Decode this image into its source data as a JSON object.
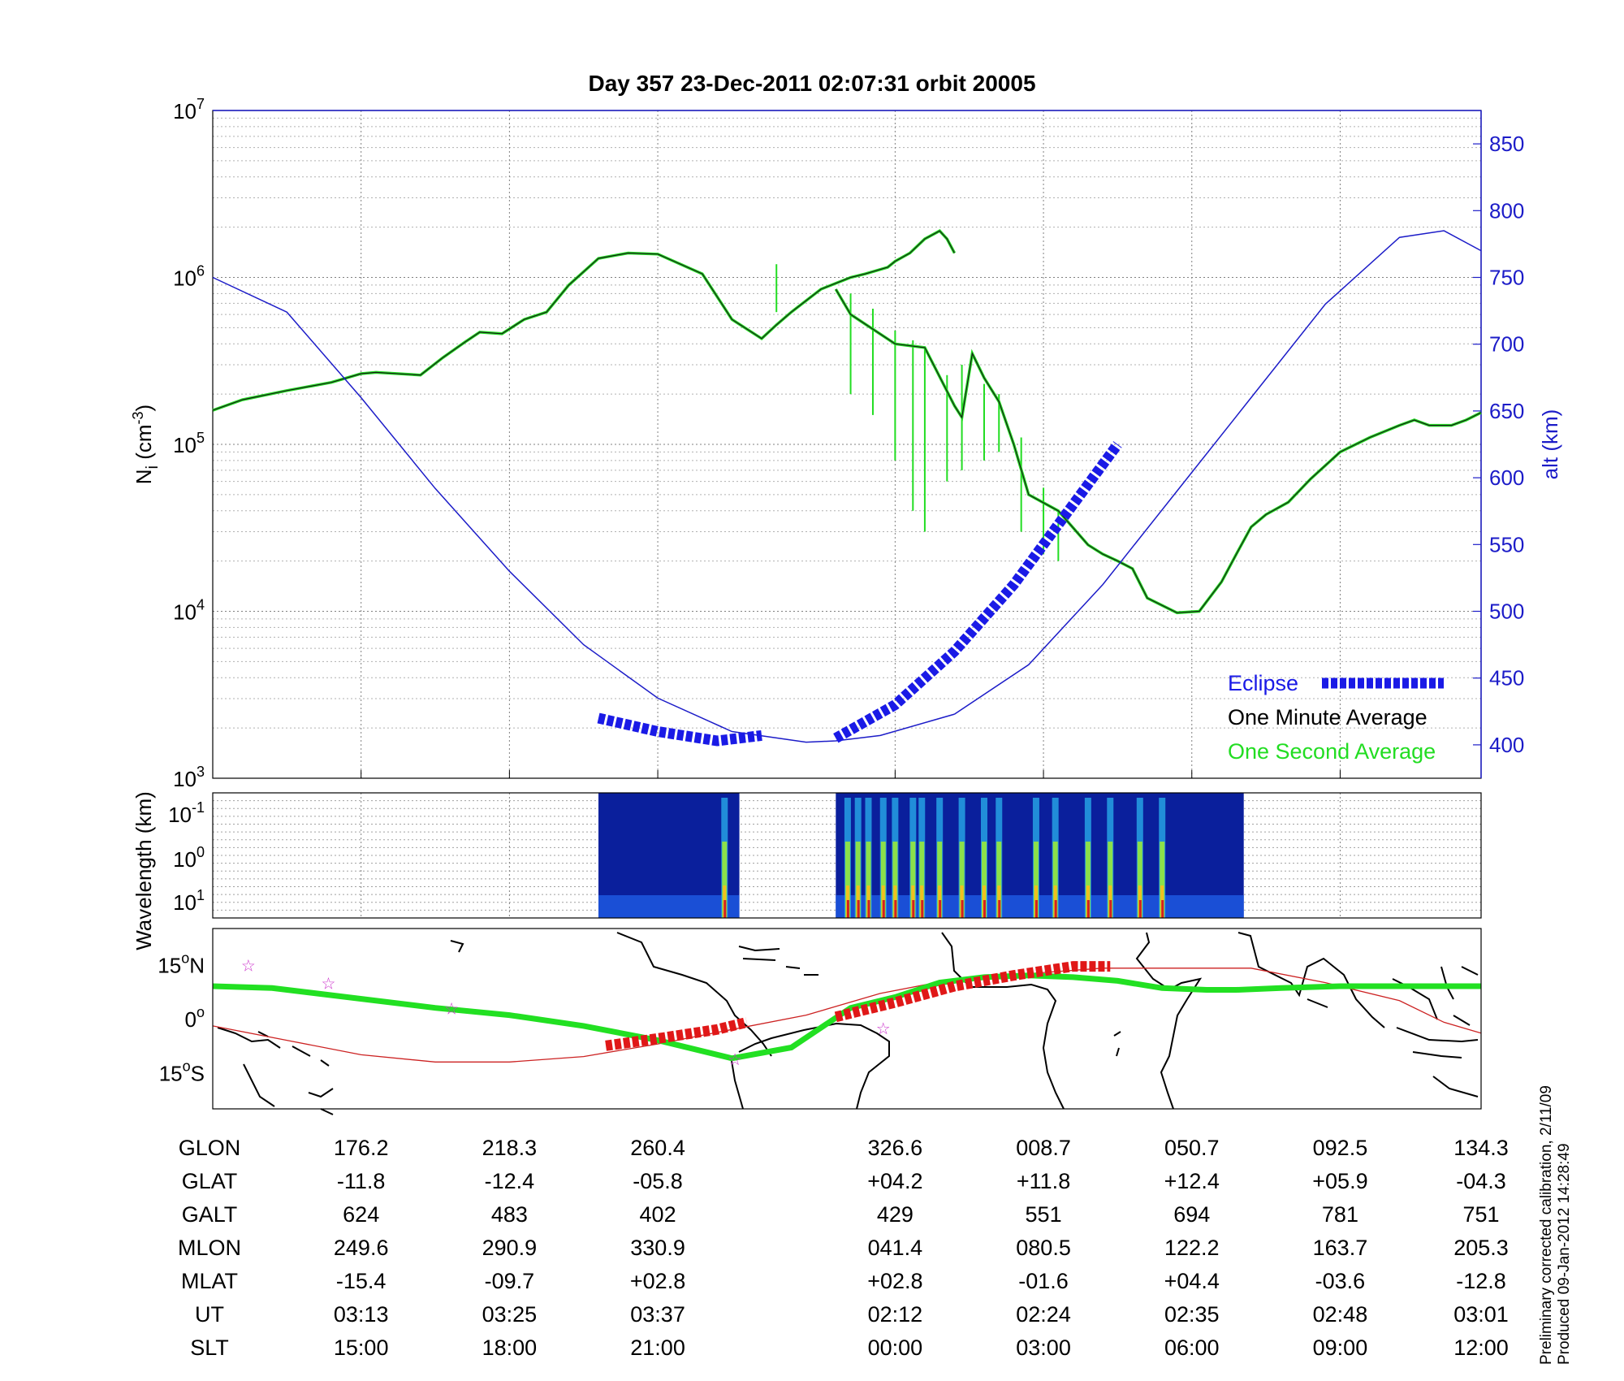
{
  "title": "Day 357  23-Dec-2011 02:07:31   orbit 20005",
  "colors": {
    "density_line": "#1a1a1a",
    "second_line": "#22dd22",
    "altitude_line": "#1c1cc8",
    "eclipse": "#1a1ae6",
    "track": "#22e022",
    "track_eclipse": "#e01818",
    "magnetic_equator": "#cc2222",
    "star": "#cc33cc"
  },
  "chart_data": [
    {
      "type": "line",
      "panel": "ion-density",
      "ylabel": "N_i (cm^-3)",
      "ylabel_main": "N",
      "ylabel_sub": "i",
      "ylabel_unit_open": " (cm",
      "ylabel_unit_exp": "-3",
      "ylabel_unit_close": ")",
      "yscale": "log",
      "ylim": [
        1000,
        10000000
      ],
      "yticks": [
        {
          "base": "10",
          "exp": "3",
          "value": 1000
        },
        {
          "base": "10",
          "exp": "4",
          "value": 10000
        },
        {
          "base": "10",
          "exp": "5",
          "value": 100000
        },
        {
          "base": "10",
          "exp": "6",
          "value": 1000000
        },
        {
          "base": "10",
          "exp": "7",
          "value": 10000000
        }
      ],
      "y2label": "alt (km)",
      "y2lim": [
        375,
        875
      ],
      "y2ticks": [
        "400",
        "450",
        "500",
        "550",
        "600",
        "650",
        "700",
        "750",
        "800",
        "850"
      ],
      "xlim": [
        0,
        8.55
      ],
      "grid": true,
      "legend_position": "bottom-right",
      "legend": [
        {
          "label": "Eclipse",
          "key": "eclipse"
        },
        {
          "label": "One Minute Average",
          "key": "minute"
        },
        {
          "label": "One Second Average",
          "key": "second"
        }
      ],
      "series": [
        {
          "name": "One Minute Average",
          "segments": [
            {
              "x": [
                0.0,
                0.2,
                0.5,
                0.8,
                1.0,
                1.1,
                1.4,
                1.55,
                1.7,
                1.8,
                1.95,
                2.1,
                2.25,
                2.4,
                2.6,
                2.8,
                3.0,
                3.3,
                3.5,
                3.7,
                3.8,
                3.9,
                4.1,
                4.3,
                4.4,
                4.55,
                4.6,
                4.7,
                4.8,
                4.9,
                4.95,
                5.0
              ],
              "y": [
                160000,
                185000,
                210000,
                235000,
                265000,
                270000,
                260000,
                330000,
                410000,
                470000,
                460000,
                560000,
                620000,
                900000,
                1300000,
                1400000,
                1380000,
                1050000,
                560000,
                430000,
                520000,
                620000,
                850000,
                1000000,
                1050000,
                1150000,
                1250000,
                1400000,
                1700000,
                1900000,
                1700000,
                1400000
              ]
            },
            {
              "x": [
                4.2,
                4.3,
                4.6,
                4.8,
                5.0,
                5.05,
                5.12,
                5.2,
                5.3,
                5.4,
                5.5,
                5.7,
                5.9,
                6.0,
                6.1,
                6.2,
                6.3,
                6.5,
                6.65,
                6.8,
                6.9,
                7.0,
                7.1,
                7.25,
                7.4,
                7.6,
                7.8,
                8.0,
                8.1,
                8.2,
                8.35,
                8.45,
                8.55
              ],
              "y": [
                850000,
                600000,
                400000,
                380000,
                170000,
                145000,
                350000,
                250000,
                180000,
                100000,
                50000,
                40000,
                25000,
                22000,
                20000,
                18000,
                12000,
                9800,
                10000,
                15000,
                22000,
                32000,
                38000,
                45000,
                62000,
                90000,
                110000,
                130000,
                140000,
                130000,
                130000,
                140000,
                155000
              ]
            }
          ]
        },
        {
          "name": "One Second Average",
          "spikes": [
            {
              "x": 3.8,
              "y": 1200000,
              "y_low": 620000
            },
            {
              "x": 4.3,
              "y": 800000,
              "y_low": 200000
            },
            {
              "x": 4.45,
              "y": 650000,
              "y_low": 150000
            },
            {
              "x": 4.6,
              "y": 480000,
              "y_low": 80000
            },
            {
              "x": 4.72,
              "y": 420000,
              "y_low": 40000
            },
            {
              "x": 4.8,
              "y": 380000,
              "y_low": 30000
            },
            {
              "x": 4.95,
              "y": 260000,
              "y_low": 60000
            },
            {
              "x": 5.05,
              "y": 300000,
              "y_low": 70000
            },
            {
              "x": 5.2,
              "y": 230000,
              "y_low": 80000
            },
            {
              "x": 5.3,
              "y": 200000,
              "y_low": 90000
            },
            {
              "x": 5.45,
              "y": 110000,
              "y_low": 30000
            },
            {
              "x": 5.6,
              "y": 55000,
              "y_low": 22000
            },
            {
              "x": 5.7,
              "y": 40000,
              "y_low": 20000
            }
          ]
        },
        {
          "name": "alt (km)",
          "axis": "right",
          "segments": [
            {
              "x": [
                0.0,
                0.5,
                1.0,
                1.5,
                2.0,
                2.5,
                3.0,
                3.5,
                4.0,
                4.2,
                4.5,
                5.0
              ],
              "y": [
                750,
                724,
                660,
                592,
                530,
                475,
                435,
                410,
                402,
                403,
                407,
                423
              ]
            },
            {
              "x": [
                5.0,
                5.5,
                6.0,
                6.5,
                7.0,
                7.5,
                8.0,
                8.3,
                8.55
              ],
              "y": [
                423,
                460,
                520,
                590,
                660,
                730,
                780,
                785,
                770
              ]
            }
          ]
        },
        {
          "name": "Eclipse",
          "axis": "right",
          "segments": [
            {
              "x": [
                2.6,
                3.0,
                3.4,
                3.7
              ],
              "y": [
                420,
                410,
                403,
                407
              ]
            },
            {
              "x": [
                4.2,
                4.6,
                5.0,
                5.4,
                5.8,
                6.1
              ],
              "y": [
                405,
                430,
                470,
                520,
                580,
                625
              ]
            }
          ]
        }
      ]
    },
    {
      "type": "heatmap",
      "panel": "wavelength-spectrogram",
      "ylabel": "Wavelength (km)",
      "yticks": [
        {
          "base": "10",
          "exp": "-1"
        },
        {
          "base": "10",
          "exp": "0"
        },
        {
          "base": "10",
          "exp": "1"
        }
      ],
      "data_intervals": [
        [
          2.6,
          3.55
        ],
        [
          4.2,
          6.95
        ]
      ],
      "intense_x": [
        3.45,
        4.28,
        4.35,
        4.42,
        4.52,
        4.6,
        4.72,
        4.78,
        4.9,
        5.05,
        5.2,
        5.3,
        5.55,
        5.68,
        5.9,
        6.05,
        6.25,
        6.4
      ]
    },
    {
      "type": "scatter",
      "panel": "ground-track-map",
      "ylabel_ticks": [
        {
          "value": "15",
          "suffix": "N",
          "lat": 15
        },
        {
          "value": "0",
          "suffix": "",
          "lat": 0
        },
        {
          "value": "15",
          "suffix": "S",
          "lat": -15
        }
      ],
      "ylim": [
        -25,
        25
      ],
      "ground_track": {
        "x": [
          0.0,
          0.4,
          0.8,
          1.5,
          2.0,
          2.5,
          3.0,
          3.5,
          3.9,
          4.3,
          4.6,
          4.9,
          5.2,
          5.5,
          5.8,
          6.1,
          6.4,
          6.7,
          6.9,
          7.2,
          7.6,
          8.0,
          8.55
        ],
        "lat": [
          9,
          8.5,
          6.5,
          3,
          1,
          -2,
          -6,
          -11,
          -8,
          3,
          6,
          10,
          11.5,
          12,
          11.5,
          10.5,
          8.5,
          8,
          8,
          8.5,
          9,
          9,
          9
        ]
      },
      "eclipse_track": {
        "segments": [
          {
            "x": [
              2.65,
              3.0,
              3.4,
              3.6
            ],
            "lat": [
              -7.5,
              -5.5,
              -3,
              -1
            ]
          },
          {
            "x": [
              4.2,
              4.6,
              5.0,
              5.4,
              5.8,
              6.05
            ],
            "lat": [
              0.5,
              4.5,
              9,
              12,
              14.5,
              14.5
            ]
          }
        ]
      },
      "magnetic_equator": {
        "x": [
          0.0,
          0.5,
          1.0,
          1.5,
          2.0,
          2.5,
          3.0,
          3.5,
          4.0,
          4.5,
          5.0,
          6.0,
          7.0,
          7.5,
          8.0,
          8.3,
          8.55
        ],
        "lat": [
          -2,
          -6,
          -10,
          -12,
          -12,
          -10.5,
          -7,
          -3,
          1,
          7,
          11,
          14,
          14,
          10,
          5,
          -1,
          -4
        ]
      },
      "stars": [
        {
          "x": 0.24,
          "lat": 15
        },
        {
          "x": 0.78,
          "lat": 10
        },
        {
          "x": 1.61,
          "lat": 3
        },
        {
          "x": 4.52,
          "lat": -2.5
        },
        {
          "x": 3.52,
          "lat": -11
        }
      ]
    }
  ],
  "table": {
    "columns_x": [
      1.0,
      2.0,
      3.0,
      4.6,
      5.6,
      6.6,
      7.6,
      8.55
    ],
    "rows": [
      {
        "label": "GLON",
        "values": [
          "176.2",
          "218.3",
          "260.4",
          "326.6",
          "008.7",
          "050.7",
          "092.5",
          "134.3"
        ]
      },
      {
        "label": "GLAT",
        "values": [
          "-11.8",
          "-12.4",
          "-05.8",
          "+04.2",
          "+11.8",
          "+12.4",
          "+05.9",
          "-04.3"
        ]
      },
      {
        "label": "GALT",
        "values": [
          "624",
          "483",
          "402",
          "429",
          "551",
          "694",
          "781",
          "751"
        ]
      },
      {
        "label": "MLON",
        "values": [
          "249.6",
          "290.9",
          "330.9",
          "041.4",
          "080.5",
          "122.2",
          "163.7",
          "205.3"
        ]
      },
      {
        "label": "MLAT",
        "values": [
          "-15.4",
          "-09.7",
          "+02.8",
          "+02.8",
          "-01.6",
          "+04.4",
          "-03.6",
          "-12.8"
        ]
      },
      {
        "label": "UT",
        "values": [
          "03:13",
          "03:25",
          "03:37",
          "02:12",
          "02:24",
          "02:35",
          "02:48",
          "03:01"
        ]
      },
      {
        "label": "SLT",
        "values": [
          "15:00",
          "18:00",
          "21:00",
          "00:00",
          "03:00",
          "06:00",
          "09:00",
          "12:00"
        ]
      }
    ]
  },
  "footnote": {
    "line1": "Preliminary corrected calibration, 2/11/09",
    "line2": "Produced 09-Jan-2012 14:28:49"
  }
}
